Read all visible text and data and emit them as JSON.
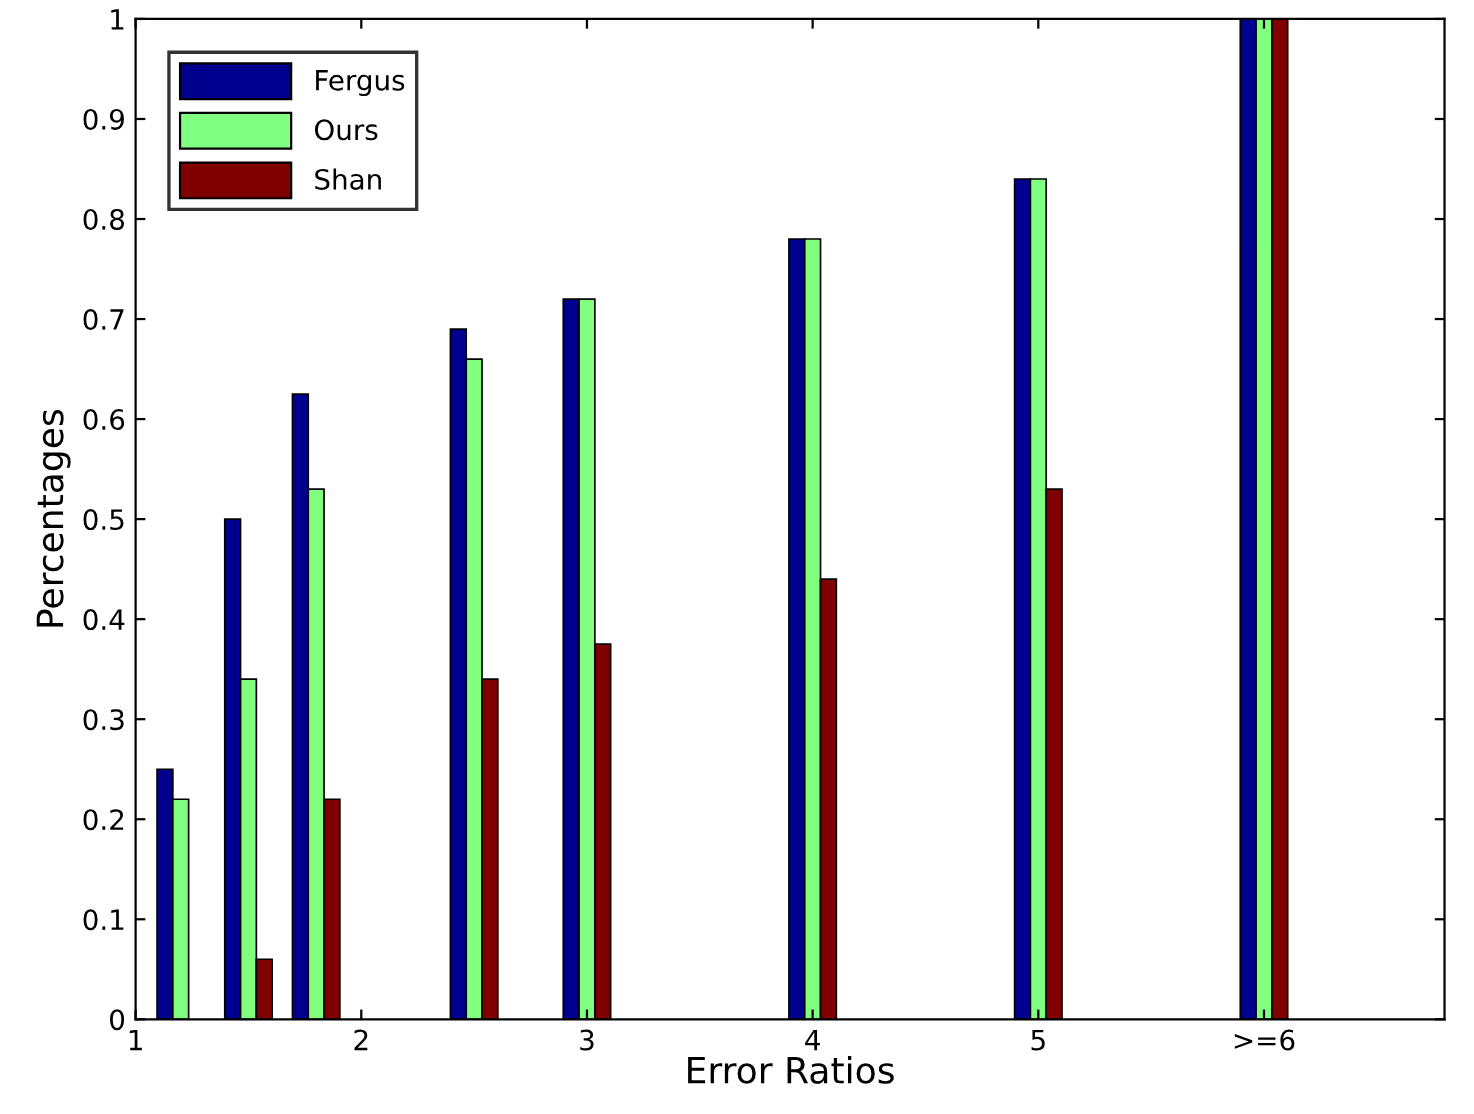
{
  "chart_data": {
    "type": "bar",
    "xlabel": "Error Ratios",
    "ylabel": "Percentages",
    "x": [
      1.2,
      1.5,
      1.8,
      2.5,
      3,
      4,
      5,
      6
    ],
    "series": [
      {
        "name": "Fergus",
        "color": "#00008f",
        "values": [
          0.25,
          0.5,
          0.625,
          0.69,
          0.72,
          0.78,
          0.84,
          1
        ]
      },
      {
        "name": "Ours",
        "color": "#80ff80",
        "values": [
          0.22,
          0.34,
          0.53,
          0.66,
          0.72,
          0.78,
          0.84,
          1
        ]
      },
      {
        "name": "Shan",
        "color": "#800000",
        "values": [
          null,
          0.06,
          0.22,
          0.34,
          0.375,
          0.44,
          0.53,
          1
        ]
      }
    ],
    "xlim": [
      1,
      6.8
    ],
    "xticks": [
      1,
      2,
      3,
      4,
      5,
      {
        "value": 6,
        "label": ">=6"
      }
    ],
    "ylim": [
      0,
      1
    ],
    "yticks": [
      0,
      0.1,
      0.2,
      0.3,
      0.4,
      0.5,
      0.6,
      0.7,
      0.8,
      0.9,
      1
    ],
    "grid": false,
    "legend": "top left"
  }
}
